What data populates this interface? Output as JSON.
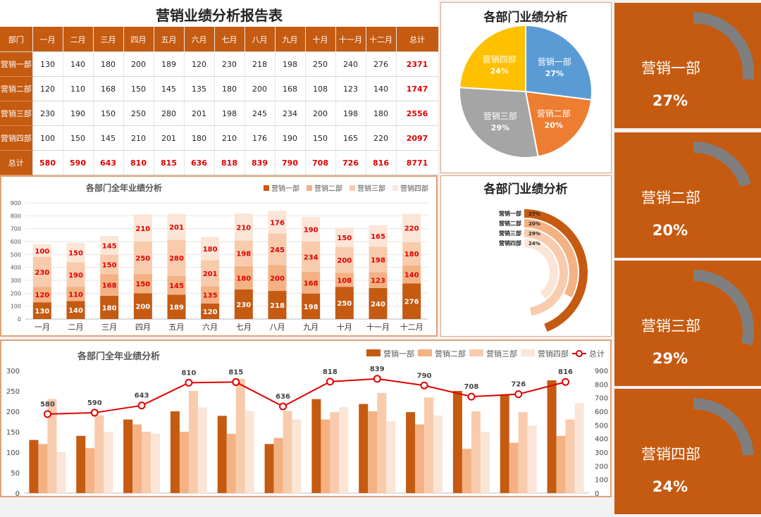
{
  "report": {
    "title": "营销业绩分析报告表",
    "header": [
      "部门",
      "一月",
      "二月",
      "三月",
      "四月",
      "五月",
      "六月",
      "七月",
      "八月",
      "九月",
      "十月",
      "十一月",
      "十二月",
      "总计"
    ],
    "rows": [
      {
        "dept": "营销一部",
        "values": [
          130,
          140,
          180,
          200,
          189,
          120,
          230,
          218,
          198,
          250,
          240,
          276
        ],
        "total": 2371
      },
      {
        "dept": "营销二部",
        "values": [
          120,
          110,
          168,
          150,
          145,
          135,
          180,
          200,
          168,
          108,
          123,
          140
        ],
        "total": 1747
      },
      {
        "dept": "营销三部",
        "values": [
          230,
          190,
          150,
          250,
          280,
          201,
          198,
          245,
          234,
          200,
          198,
          180
        ],
        "total": 2556
      },
      {
        "dept": "营销四部",
        "values": [
          100,
          150,
          145,
          210,
          201,
          180,
          210,
          176,
          190,
          150,
          165,
          220
        ],
        "total": 2097
      }
    ],
    "total_row": {
      "label": "总计",
      "values": [
        580,
        590,
        643,
        810,
        815,
        636,
        818,
        839,
        790,
        708,
        726,
        816
      ],
      "total": 8771
    }
  },
  "colors": {
    "brand": "#c55a11",
    "dept1": "#c55a11",
    "dept2": "#f4b183",
    "dept3": "#f8cbad",
    "dept4": "#fbe5d6",
    "label_red": "#e00000",
    "line_red": "#e00000",
    "pie": [
      "#5b9bd5",
      "#ed7d31",
      "#a5a5a5",
      "#ffc000"
    ],
    "gauge_track": "#7f7f7f"
  },
  "chart_data": [
    {
      "type": "pie",
      "title": "各部门业绩分析",
      "slices": [
        {
          "name": "营销一部",
          "value": 27,
          "label": "27%"
        },
        {
          "name": "营销二部",
          "value": 20,
          "label": "20%"
        },
        {
          "name": "营销三部",
          "value": 29,
          "label": "29%"
        },
        {
          "name": "营销四部",
          "value": 24,
          "label": "24%"
        }
      ]
    },
    {
      "type": "radial-bar",
      "title": "各部门业绩分析",
      "categories": [
        "营销一部",
        "营销二部",
        "营销三部",
        "营销四部"
      ],
      "values": [
        27,
        20,
        29,
        24
      ],
      "labels": [
        "27%",
        "20%",
        "29%",
        "24%"
      ]
    },
    {
      "type": "bar",
      "stacked": true,
      "title": "各部门全年业绩分析",
      "categories": [
        "一月",
        "二月",
        "三月",
        "四月",
        "五月",
        "六月",
        "七月",
        "八月",
        "九月",
        "十月",
        "十一月",
        "十二月"
      ],
      "series": [
        {
          "name": "营销一部",
          "values": [
            130,
            140,
            180,
            200,
            189,
            120,
            230,
            218,
            198,
            250,
            240,
            276
          ]
        },
        {
          "name": "营销二部",
          "values": [
            120,
            110,
            168,
            150,
            145,
            135,
            180,
            200,
            168,
            108,
            123,
            140
          ]
        },
        {
          "name": "营销三部",
          "values": [
            230,
            190,
            150,
            250,
            280,
            201,
            198,
            245,
            234,
            200,
            198,
            180
          ]
        },
        {
          "name": "营销四部",
          "values": [
            100,
            150,
            145,
            210,
            201,
            180,
            210,
            176,
            190,
            150,
            165,
            220
          ]
        }
      ],
      "ylim": [
        0,
        900
      ],
      "yticks": [
        0,
        100,
        200,
        300,
        400,
        500,
        600,
        700,
        800,
        900
      ],
      "legend": "top-right",
      "grid": true
    },
    {
      "type": "bar",
      "subtype": "grouped-bar-with-line",
      "title": "各部门全年业绩分析",
      "categories": [
        "一月",
        "二月",
        "三月",
        "四月",
        "五月",
        "六月",
        "七月",
        "八月",
        "九月",
        "十月",
        "十一月",
        "十二月"
      ],
      "series": [
        {
          "name": "营销一部",
          "values": [
            130,
            140,
            180,
            200,
            189,
            120,
            230,
            218,
            198,
            250,
            240,
            276
          ],
          "axis": "left"
        },
        {
          "name": "营销二部",
          "values": [
            120,
            110,
            168,
            150,
            145,
            135,
            180,
            200,
            168,
            108,
            123,
            140
          ],
          "axis": "left"
        },
        {
          "name": "营销三部",
          "values": [
            230,
            190,
            150,
            250,
            280,
            201,
            198,
            245,
            234,
            200,
            198,
            180
          ],
          "axis": "left"
        },
        {
          "name": "营销四部",
          "values": [
            100,
            150,
            145,
            210,
            201,
            180,
            210,
            176,
            190,
            150,
            165,
            220
          ],
          "axis": "left"
        },
        {
          "name": "总计",
          "type": "line",
          "values": [
            580,
            590,
            643,
            810,
            815,
            636,
            818,
            839,
            790,
            708,
            726,
            816
          ],
          "axis": "right"
        }
      ],
      "ylim": [
        0,
        300
      ],
      "yticks": [
        0,
        50,
        100,
        150,
        200,
        250,
        300
      ],
      "y2lim": [
        0,
        900
      ],
      "y2ticks": [
        0,
        100,
        200,
        300,
        400,
        500,
        600,
        700,
        800,
        900
      ],
      "legend": "top-right",
      "grid": false
    }
  ],
  "cards": [
    {
      "name": "营销一部",
      "percent": "27%",
      "value": 27
    },
    {
      "name": "营销二部",
      "percent": "20%",
      "value": 20
    },
    {
      "name": "营销三部",
      "percent": "29%",
      "value": 29
    },
    {
      "name": "营销四部",
      "percent": "24%",
      "value": 24
    }
  ]
}
